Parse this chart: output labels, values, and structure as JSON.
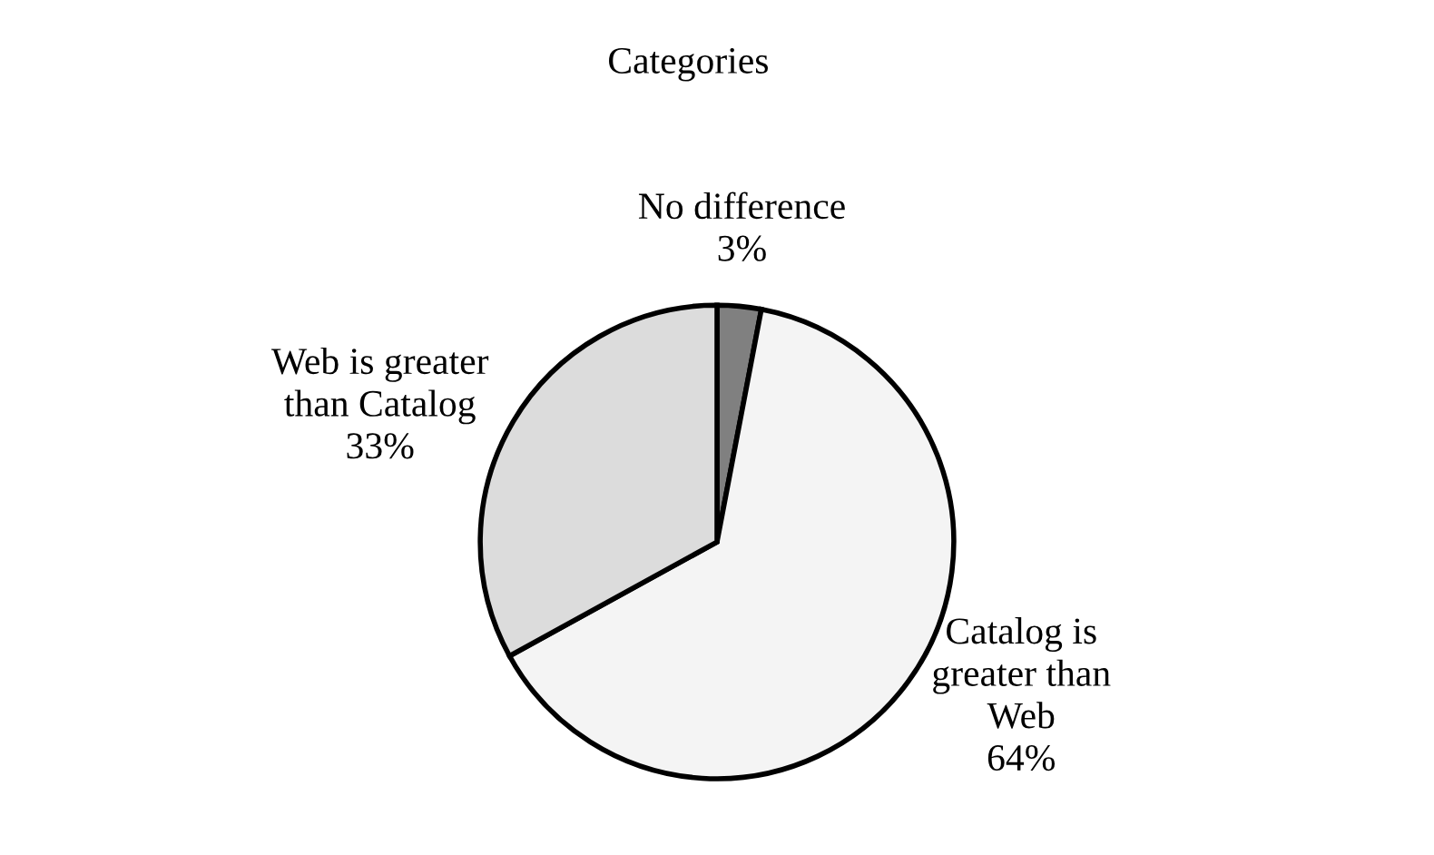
{
  "chart_data": {
    "type": "pie",
    "title": "Categories",
    "categories": [
      "No difference",
      "Catalog is\ngreater than\nWeb",
      "Web is greater\nthan Catalog"
    ],
    "values": [
      3,
      64,
      33
    ],
    "colors": [
      "#808080",
      "#f4f4f4",
      "#dcdcdc"
    ],
    "value_labels": [
      "3%",
      "64%",
      "33%"
    ]
  }
}
